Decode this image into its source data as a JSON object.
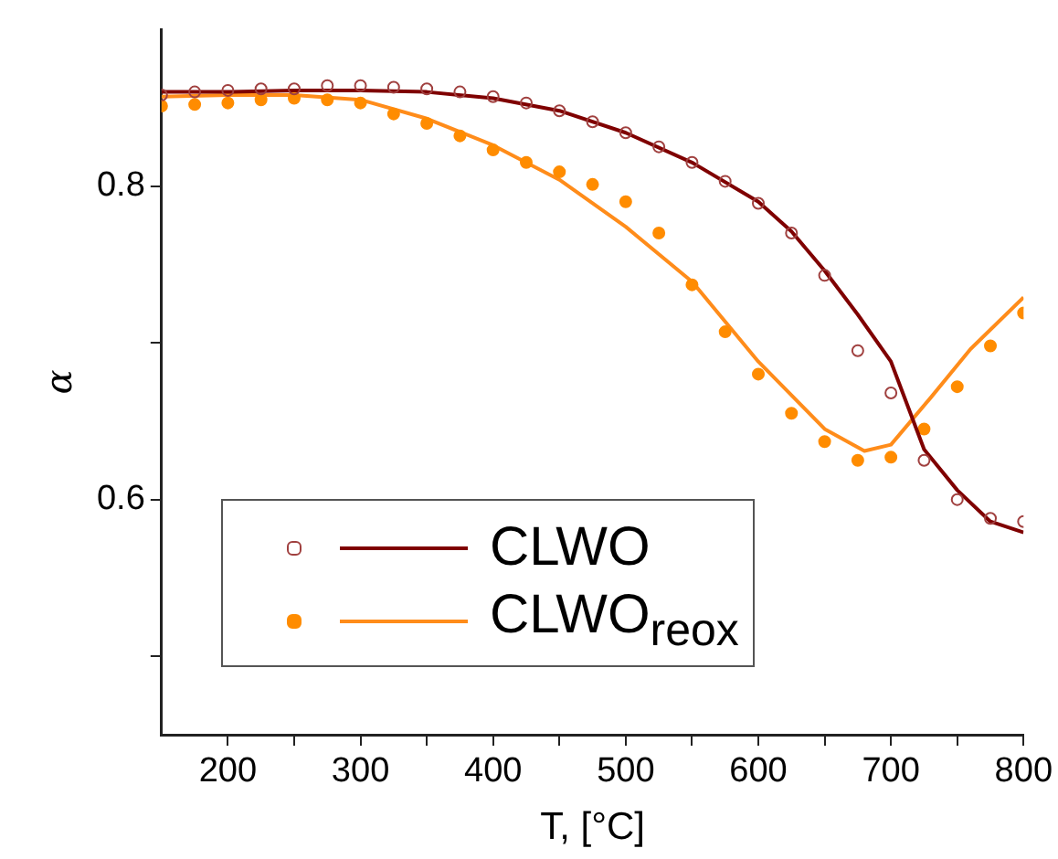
{
  "chart_data": {
    "type": "scatter",
    "xlabel": "T, [°C]",
    "ylabel": "α",
    "xlim": [
      150,
      800
    ],
    "xticks": [
      200,
      {
        "value": 250,
        "label": null
      },
      300,
      {
        "value": 350,
        "label": null
      },
      400,
      {
        "value": 450,
        "label": null
      },
      500,
      {
        "value": 550,
        "label": null
      },
      600,
      {
        "value": 650,
        "label": null
      },
      700,
      {
        "value": 750,
        "label": null
      },
      800
    ],
    "ylim": [
      0.45,
      0.9
    ],
    "yticks": [
      {
        "value": 0.5,
        "label": null
      },
      0.6,
      {
        "value": 0.7,
        "label": null
      },
      0.8
    ],
    "grid": false,
    "legend": "bottom left",
    "series": [
      {
        "marker": "circle",
        "color": "#a0403f",
        "x": [
          150,
          175,
          200,
          225,
          250,
          275,
          300,
          325,
          350,
          375,
          400,
          425,
          450,
          475,
          500,
          525,
          550,
          575,
          600,
          625,
          650,
          675,
          700,
          725,
          750,
          775,
          800
        ],
        "values": [
          0.858,
          0.86,
          0.861,
          0.862,
          0.862,
          0.864,
          0.864,
          0.863,
          0.862,
          0.86,
          0.857,
          0.853,
          0.848,
          0.841,
          0.834,
          0.825,
          0.815,
          0.803,
          0.789,
          0.77,
          0.743,
          0.695,
          0.668,
          0.625,
          0.6,
          0.588,
          0.586
        ]
      },
      {
        "type": "line",
        "name": "CLWO",
        "marker": "none",
        "color": "#7f0000",
        "x": [
          150,
          200,
          250,
          300,
          350,
          400,
          450,
          500,
          550,
          600,
          625,
          650,
          675,
          700,
          725,
          750,
          775,
          800
        ],
        "values": [
          0.86,
          0.86,
          0.861,
          0.861,
          0.86,
          0.856,
          0.848,
          0.834,
          0.815,
          0.79,
          0.771,
          0.746,
          0.718,
          0.688,
          0.632,
          0.606,
          0.586,
          0.579
        ]
      },
      {
        "marker": "circle",
        "color": "#ff8c00",
        "x": [
          150,
          175,
          200,
          225,
          250,
          275,
          300,
          325,
          350,
          375,
          400,
          425,
          450,
          475,
          500,
          525,
          550,
          575,
          600,
          625,
          650,
          675,
          700,
          725,
          750,
          775,
          800
        ],
        "values": [
          0.851,
          0.852,
          0.853,
          0.855,
          0.856,
          0.855,
          0.853,
          0.846,
          0.84,
          0.832,
          0.823,
          0.815,
          0.809,
          0.801,
          0.79,
          0.77,
          0.737,
          0.707,
          0.68,
          0.655,
          0.637,
          0.625,
          0.627,
          0.645,
          0.672,
          0.698,
          0.719
        ]
      },
      {
        "type": "line",
        "name": "CLWO$_{reox}$",
        "marker": "none",
        "color": "#ff8c1a",
        "x": [
          150,
          200,
          250,
          300,
          350,
          400,
          450,
          500,
          550,
          600,
          650,
          680,
          700,
          730,
          760,
          800
        ],
        "values": [
          0.857,
          0.858,
          0.858,
          0.855,
          0.843,
          0.826,
          0.804,
          0.774,
          0.739,
          0.688,
          0.645,
          0.631,
          0.635,
          0.665,
          0.696,
          0.729
        ]
      }
    ]
  }
}
